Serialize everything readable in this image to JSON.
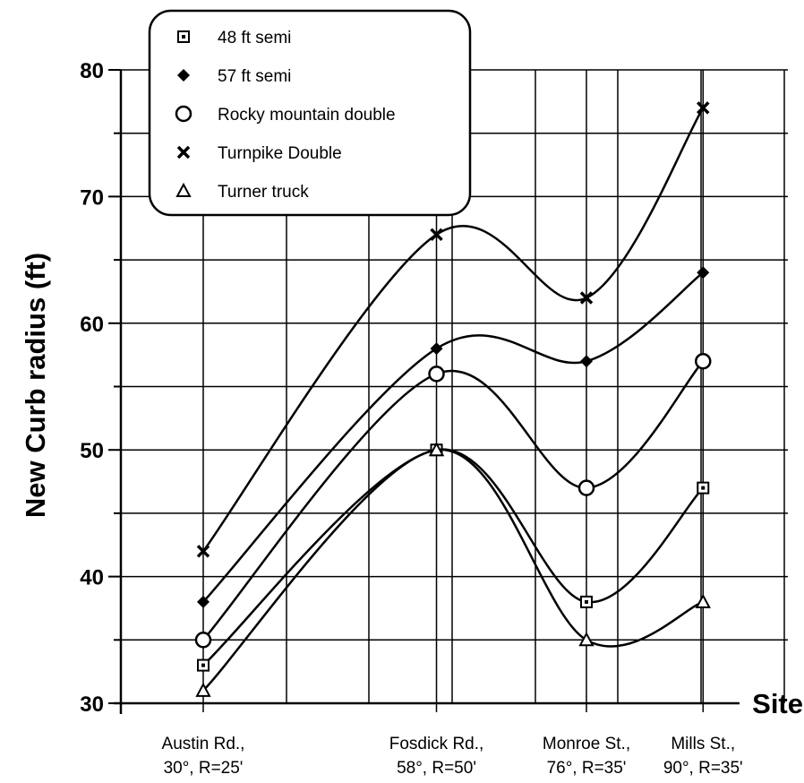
{
  "chart_data": {
    "type": "line",
    "ylabel": "New Curb radius (ft)",
    "xlabel": "Site",
    "ylim": [
      30,
      80
    ],
    "yticks": [
      30,
      40,
      50,
      60,
      70,
      80
    ],
    "grid": true,
    "legend_position": "top-left",
    "categories": [
      {
        "x": 30,
        "line1": "Austin Rd.,",
        "line2": "30°, R=25'"
      },
      {
        "x": 58,
        "line1": "Fosdick Rd.,",
        "line2": "58°, R=50'"
      },
      {
        "x": 76,
        "line1": "Monroe St.,",
        "line2": "76°, R=35'"
      },
      {
        "x": 90,
        "line1": "Mills St.,",
        "line2": "90°, R=35'"
      }
    ],
    "series": [
      {
        "name": "48 ft semi",
        "marker": "square",
        "values": [
          33,
          50,
          38,
          47
        ]
      },
      {
        "name": "57 ft semi",
        "marker": "diamond",
        "values": [
          38,
          58,
          57,
          64
        ]
      },
      {
        "name": "Rocky mountain double",
        "marker": "circle",
        "values": [
          35,
          56,
          47,
          57
        ]
      },
      {
        "name": "Turnpike Double",
        "marker": "x",
        "values": [
          42,
          67,
          62,
          77
        ]
      },
      {
        "name": "Turner truck",
        "marker": "triangle",
        "values": [
          31,
          50,
          35,
          38
        ]
      }
    ]
  }
}
